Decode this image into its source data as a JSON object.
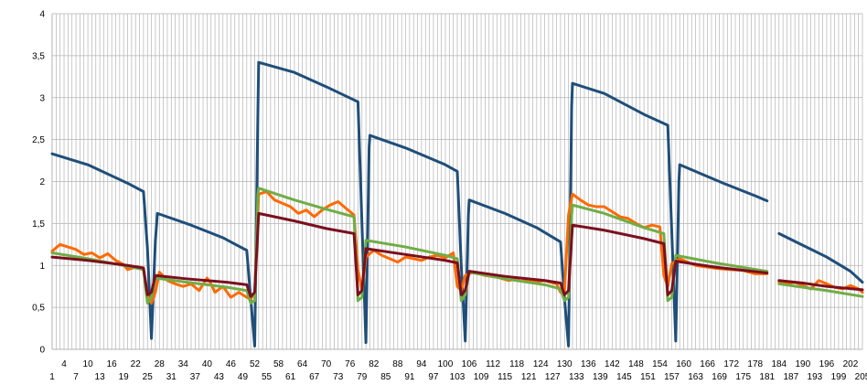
{
  "chart_data": {
    "type": "line",
    "title": "",
    "xlabel": "",
    "ylabel": "",
    "x_range": [
      1,
      205
    ],
    "ylim": [
      0,
      4
    ],
    "y_ticks": [
      "0",
      "0,5",
      "1",
      "1,5",
      "2",
      "2,5",
      "3",
      "3,5",
      "4"
    ],
    "x_ticks_row1": [
      "4",
      "10",
      "16",
      "22",
      "28",
      "34",
      "40",
      "46",
      "52",
      "58",
      "64",
      "70",
      "76",
      "82",
      "88",
      "94",
      "100",
      "106",
      "112",
      "118",
      "124",
      "130",
      "136",
      "142",
      "148",
      "154",
      "160",
      "166",
      "172",
      "178",
      "184",
      "190",
      "196",
      "202"
    ],
    "x_ticks_row2": [
      "1",
      "7",
      "13",
      "19",
      "25",
      "31",
      "37",
      "43",
      "49",
      "55",
      "61",
      "67",
      "73",
      "79",
      "85",
      "91",
      "97",
      "103",
      "109",
      "115",
      "121",
      "127",
      "133",
      "139",
      "145",
      "151",
      "157",
      "163",
      "169",
      "175",
      "181",
      "187",
      "193",
      "199",
      "205"
    ],
    "grid": true,
    "legend": "none",
    "series": [
      {
        "color": "#1f4e79",
        "segments": [
          [
            [
              1,
              2.33
            ],
            [
              10,
              2.2
            ],
            [
              20,
              1.98
            ],
            [
              24,
              1.88
            ],
            [
              25,
              1.2
            ],
            [
              26,
              0.13
            ],
            [
              27,
              1.3
            ],
            [
              27.5,
              1.62
            ],
            [
              36,
              1.48
            ],
            [
              44,
              1.33
            ],
            [
              50,
              1.18
            ],
            [
              51,
              0.6
            ],
            [
              52,
              0.04
            ],
            [
              52.8,
              2.8
            ],
            [
              53,
              3.42
            ],
            [
              62,
              3.3
            ],
            [
              70,
              3.13
            ],
            [
              78,
              2.95
            ],
            [
              79,
              1.5
            ],
            [
              80,
              0.08
            ],
            [
              80.8,
              2.4
            ],
            [
              81,
              2.55
            ],
            [
              90,
              2.4
            ],
            [
              100,
              2.2
            ],
            [
              103,
              2.12
            ],
            [
              104,
              1.0
            ],
            [
              105,
              0.1
            ],
            [
              105.8,
              1.6
            ],
            [
              106,
              1.78
            ],
            [
              115,
              1.62
            ],
            [
              123,
              1.45
            ],
            [
              129,
              1.28
            ],
            [
              130,
              0.6
            ],
            [
              131,
              0.04
            ],
            [
              131.8,
              2.9
            ],
            [
              132,
              3.17
            ],
            [
              140,
              3.05
            ],
            [
              150,
              2.8
            ],
            [
              156,
              2.67
            ],
            [
              157,
              1.4
            ],
            [
              158,
              0.1
            ],
            [
              158.8,
              2.0
            ],
            [
              159,
              2.2
            ],
            [
              170,
              1.98
            ],
            [
              178,
              1.83
            ],
            [
              181,
              1.77
            ]
          ],
          [
            [
              184,
              1.38
            ],
            [
              190,
              1.24
            ],
            [
              196,
              1.1
            ],
            [
              202,
              0.93
            ],
            [
              205,
              0.8
            ]
          ]
        ]
      },
      {
        "color": "#ff6a00",
        "segments": [
          [
            [
              1,
              1.17
            ],
            [
              3,
              1.25
            ],
            [
              5,
              1.22
            ],
            [
              7,
              1.19
            ],
            [
              9,
              1.13
            ],
            [
              11,
              1.15
            ],
            [
              13,
              1.09
            ],
            [
              15,
              1.14
            ],
            [
              17,
              1.06
            ],
            [
              19,
              1.01
            ],
            [
              20,
              0.95
            ],
            [
              22,
              0.98
            ],
            [
              24,
              0.95
            ],
            [
              25,
              0.65
            ],
            [
              26,
              0.55
            ],
            [
              27,
              0.68
            ],
            [
              28,
              0.92
            ],
            [
              30,
              0.82
            ],
            [
              32,
              0.78
            ],
            [
              34,
              0.75
            ],
            [
              36,
              0.78
            ],
            [
              38,
              0.7
            ],
            [
              40,
              0.85
            ],
            [
              41,
              0.78
            ],
            [
              42,
              0.68
            ],
            [
              44,
              0.75
            ],
            [
              46,
              0.62
            ],
            [
              48,
              0.68
            ],
            [
              50,
              0.62
            ],
            [
              51,
              0.6
            ],
            [
              52,
              0.68
            ],
            [
              53,
              1.85
            ],
            [
              55,
              1.88
            ],
            [
              57,
              1.78
            ],
            [
              59,
              1.74
            ],
            [
              61,
              1.7
            ],
            [
              63,
              1.62
            ],
            [
              65,
              1.66
            ],
            [
              67,
              1.58
            ],
            [
              69,
              1.66
            ],
            [
              71,
              1.72
            ],
            [
              73,
              1.76
            ],
            [
              75,
              1.68
            ],
            [
              77,
              1.6
            ],
            [
              78,
              0.95
            ],
            [
              79,
              0.7
            ],
            [
              80,
              1.1
            ],
            [
              82,
              1.18
            ],
            [
              84,
              1.12
            ],
            [
              86,
              1.08
            ],
            [
              88,
              1.04
            ],
            [
              90,
              1.1
            ],
            [
              92,
              1.08
            ],
            [
              94,
              1.06
            ],
            [
              96,
              1.1
            ],
            [
              98,
              1.12
            ],
            [
              100,
              1.09
            ],
            [
              102,
              1.15
            ],
            [
              103,
              0.75
            ],
            [
              104,
              0.7
            ],
            [
              105,
              0.88
            ],
            [
              107,
              0.92
            ],
            [
              110,
              0.88
            ],
            [
              113,
              0.86
            ],
            [
              116,
              0.82
            ],
            [
              119,
              0.85
            ],
            [
              122,
              0.8
            ],
            [
              125,
              0.82
            ],
            [
              128,
              0.78
            ],
            [
              129,
              0.68
            ],
            [
              130,
              0.7
            ],
            [
              131,
              1.6
            ],
            [
              132,
              1.85
            ],
            [
              134,
              1.78
            ],
            [
              136,
              1.72
            ],
            [
              138,
              1.7
            ],
            [
              140,
              1.7
            ],
            [
              142,
              1.64
            ],
            [
              144,
              1.58
            ],
            [
              146,
              1.56
            ],
            [
              148,
              1.5
            ],
            [
              150,
              1.45
            ],
            [
              152,
              1.48
            ],
            [
              154,
              1.46
            ],
            [
              155,
              0.88
            ],
            [
              156,
              0.75
            ],
            [
              157,
              1.02
            ],
            [
              159,
              1.08
            ],
            [
              161,
              1.04
            ],
            [
              163,
              1.0
            ],
            [
              166,
              0.98
            ],
            [
              169,
              0.96
            ],
            [
              172,
              0.95
            ],
            [
              175,
              0.94
            ],
            [
              178,
              0.9
            ],
            [
              181,
              0.9
            ]
          ],
          [
            [
              184,
              0.8
            ],
            [
              186,
              0.78
            ],
            [
              188,
              0.8
            ],
            [
              190,
              0.76
            ],
            [
              192,
              0.72
            ],
            [
              194,
              0.82
            ],
            [
              196,
              0.78
            ],
            [
              198,
              0.74
            ],
            [
              200,
              0.72
            ],
            [
              202,
              0.76
            ],
            [
              204,
              0.72
            ],
            [
              205,
              0.68
            ]
          ]
        ]
      },
      {
        "color": "#70ad47",
        "segments": [
          [
            [
              1,
              1.15
            ],
            [
              10,
              1.08
            ],
            [
              20,
              0.99
            ],
            [
              24,
              0.95
            ],
            [
              25,
              0.55
            ],
            [
              26,
              0.62
            ],
            [
              27,
              0.85
            ],
            [
              35,
              0.8
            ],
            [
              45,
              0.74
            ],
            [
              50,
              0.7
            ],
            [
              51,
              0.55
            ],
            [
              52,
              0.58
            ],
            [
              52.8,
              1.85
            ],
            [
              53,
              1.92
            ],
            [
              62,
              1.78
            ],
            [
              70,
              1.67
            ],
            [
              77,
              1.58
            ],
            [
              78,
              0.58
            ],
            [
              79,
              0.62
            ],
            [
              80,
              1.3
            ],
            [
              90,
              1.22
            ],
            [
              100,
              1.12
            ],
            [
              103,
              1.08
            ],
            [
              104,
              0.58
            ],
            [
              105,
              0.65
            ],
            [
              106,
              0.92
            ],
            [
              115,
              0.84
            ],
            [
              125,
              0.77
            ],
            [
              129,
              0.72
            ],
            [
              130,
              0.58
            ],
            [
              131,
              0.62
            ],
            [
              131.8,
              1.6
            ],
            [
              132,
              1.72
            ],
            [
              140,
              1.62
            ],
            [
              150,
              1.45
            ],
            [
              155,
              1.38
            ],
            [
              156,
              0.58
            ],
            [
              157,
              0.62
            ],
            [
              158,
              1.12
            ],
            [
              168,
              1.03
            ],
            [
              181,
              0.93
            ]
          ],
          [
            [
              184,
              0.78
            ],
            [
              190,
              0.74
            ],
            [
              196,
              0.7
            ],
            [
              205,
              0.63
            ]
          ]
        ]
      },
      {
        "color": "#7b0f1e",
        "segments": [
          [
            [
              1,
              1.1
            ],
            [
              10,
              1.06
            ],
            [
              20,
              1.0
            ],
            [
              24,
              0.97
            ],
            [
              25,
              0.65
            ],
            [
              26,
              0.68
            ],
            [
              27,
              0.88
            ],
            [
              35,
              0.84
            ],
            [
              45,
              0.8
            ],
            [
              50,
              0.77
            ],
            [
              51,
              0.63
            ],
            [
              52,
              0.68
            ],
            [
              53,
              1.62
            ],
            [
              62,
              1.53
            ],
            [
              70,
              1.44
            ],
            [
              77,
              1.38
            ],
            [
              78,
              0.65
            ],
            [
              79,
              0.7
            ],
            [
              80,
              1.2
            ],
            [
              90,
              1.13
            ],
            [
              100,
              1.06
            ],
            [
              103,
              1.03
            ],
            [
              104,
              0.65
            ],
            [
              105,
              0.7
            ],
            [
              106,
              0.93
            ],
            [
              115,
              0.87
            ],
            [
              125,
              0.82
            ],
            [
              129,
              0.79
            ],
            [
              130,
              0.65
            ],
            [
              131,
              0.7
            ],
            [
              132,
              1.48
            ],
            [
              140,
              1.42
            ],
            [
              150,
              1.32
            ],
            [
              155,
              1.26
            ],
            [
              156,
              0.65
            ],
            [
              157,
              0.7
            ],
            [
              158,
              1.05
            ],
            [
              168,
              0.98
            ],
            [
              181,
              0.91
            ]
          ],
          [
            [
              184,
              0.82
            ],
            [
              190,
              0.79
            ],
            [
              196,
              0.75
            ],
            [
              205,
              0.71
            ]
          ]
        ]
      }
    ]
  }
}
